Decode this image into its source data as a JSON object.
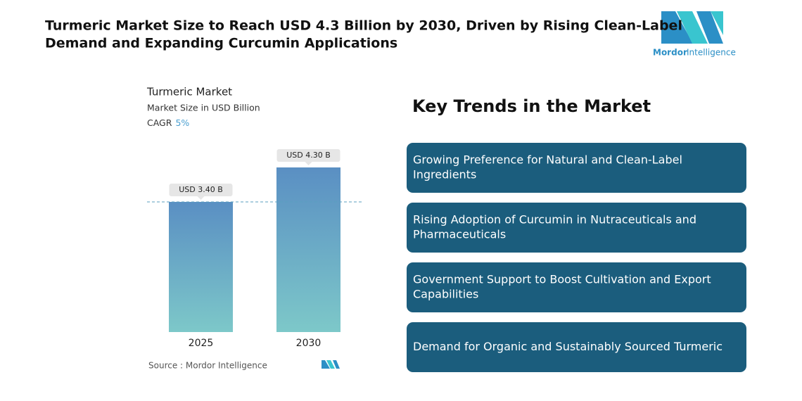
{
  "header": {
    "title": [
      "Turmeric Market Size to Reach USD 4.3 Billion by 2030, Driven by Rising Clean-Label",
      "Demand and Expanding Curcumin Applications"
    ],
    "logo_text": [
      "Mordor",
      "Intelligence"
    ]
  },
  "chart_data": {
    "type": "bar",
    "title": "Turmeric Market",
    "subtitle": "Market Size in USD Billion",
    "cagr_label": "CAGR",
    "cagr_value": "5%",
    "categories": [
      "2025",
      "2030"
    ],
    "values": [
      3.4,
      4.3
    ],
    "value_labels": [
      "USD 3.40 B",
      "USD 4.30 B"
    ],
    "color_top": "#5a8fc3",
    "color_bottom": "#7dc8c9",
    "source": "Source :  Mordor Intelligence"
  },
  "trends": {
    "title": "Key Trends in the Market",
    "color": "#1b5d7d",
    "items": [
      [
        "Growing Preference for Natural and Clean-Label",
        "Ingredients"
      ],
      [
        "Rising Adoption of Curcumin in Nutraceuticals and",
        "Pharmaceuticals"
      ],
      [
        "Government Support to Boost Cultivation and Export",
        "Capabilities"
      ],
      [
        "Demand for Organic and Sustainably Sourced Turmeric"
      ]
    ]
  }
}
